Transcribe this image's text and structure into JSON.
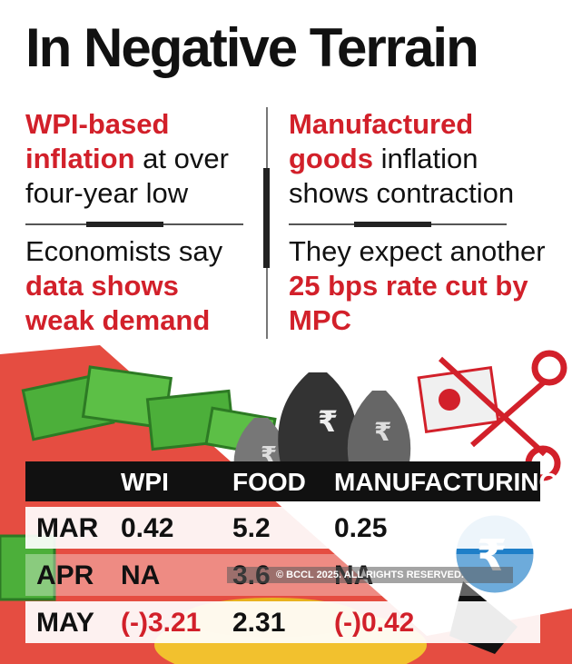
{
  "title": "In Negative Terrain",
  "left_panel": {
    "headline_red": "WPI-based inflation",
    "headline_rest": "at over four-year low",
    "note_plain": "Economists say",
    "note_red": "data shows weak demand"
  },
  "right_panel": {
    "headline_red": "Manufactured goods",
    "headline_rest": "inflation shows contraction",
    "note_plain": "They expect another",
    "note_red": "25 bps rate cut by MPC"
  },
  "illustration": {
    "rupee_symbol": "₹"
  },
  "copyright": "© BCCL 2025. ALL RIGHTS RESERVED.",
  "colors": {
    "accent_red": "#d2202a",
    "header_black": "#111111",
    "money_green": "#4caf3a",
    "coin_gold": "#f2c12e"
  },
  "chart_data": {
    "type": "table",
    "columns": [
      "WPI",
      "FOOD",
      "MANUFACTURING"
    ],
    "rows": [
      {
        "label": "MAR",
        "WPI": "0.42",
        "FOOD": "5.2",
        "MANUFACTURING": "0.25"
      },
      {
        "label": "APR",
        "WPI": "NA",
        "FOOD": "3.6",
        "MANUFACTURING": "NA"
      },
      {
        "label": "MAY",
        "WPI": "(-)3.21",
        "FOOD": "2.31",
        "MANUFACTURING": "(-)0.42"
      }
    ]
  }
}
